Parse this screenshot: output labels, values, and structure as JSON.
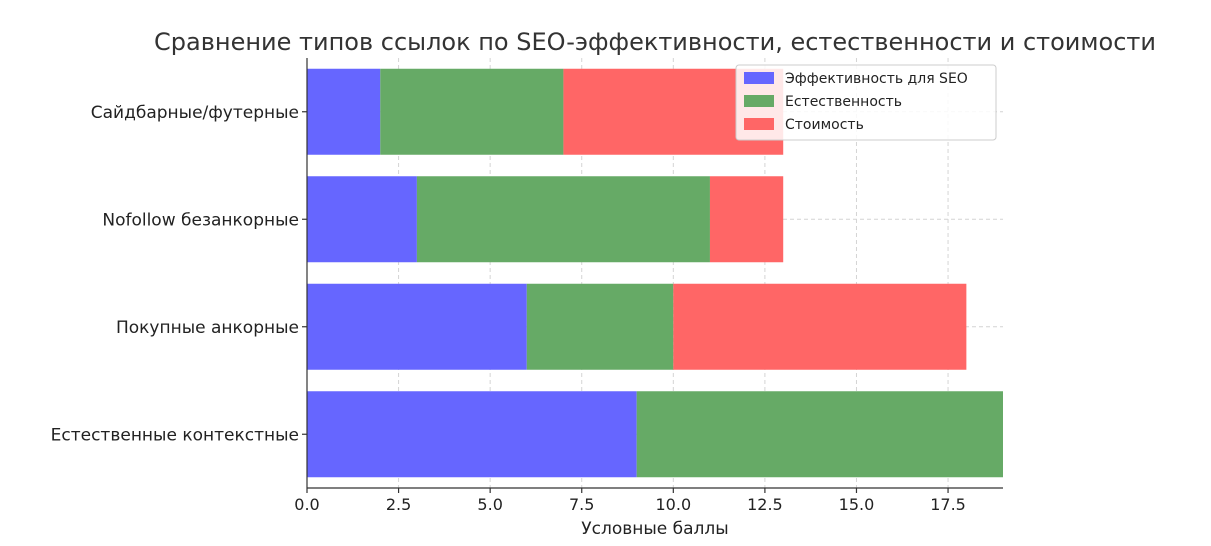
{
  "chart_data": {
    "type": "bar",
    "orientation": "horizontal",
    "stacked": true,
    "title": "Сравнение типов ссылок по SEO-эффективности, естественности и стоимости",
    "xlabel": "Условные баллы",
    "ylabel": "",
    "categories": [
      "Естественные контекстные",
      "Покупные анкорные",
      "Nofollow безанкорные",
      "Сайдбарные/футерные"
    ],
    "series": [
      {
        "name": "Эффективность для SEO",
        "color": "#6666ff",
        "values": [
          9,
          6,
          3,
          2
        ]
      },
      {
        "name": "Естественность",
        "color": "#66aa66",
        "values": [
          10,
          4,
          8,
          5
        ]
      },
      {
        "name": "Стоимость",
        "color": "#ff6666",
        "values": [
          0,
          8,
          2,
          6
        ]
      }
    ],
    "xlim": [
      0,
      19
    ],
    "xticks": [
      "0.0",
      "2.5",
      "5.0",
      "7.5",
      "10.0",
      "12.5",
      "15.0",
      "17.5"
    ],
    "xtick_values": [
      0,
      2.5,
      5,
      7.5,
      10,
      12.5,
      15,
      17.5
    ],
    "grid": true,
    "legend_position": "top-right"
  }
}
